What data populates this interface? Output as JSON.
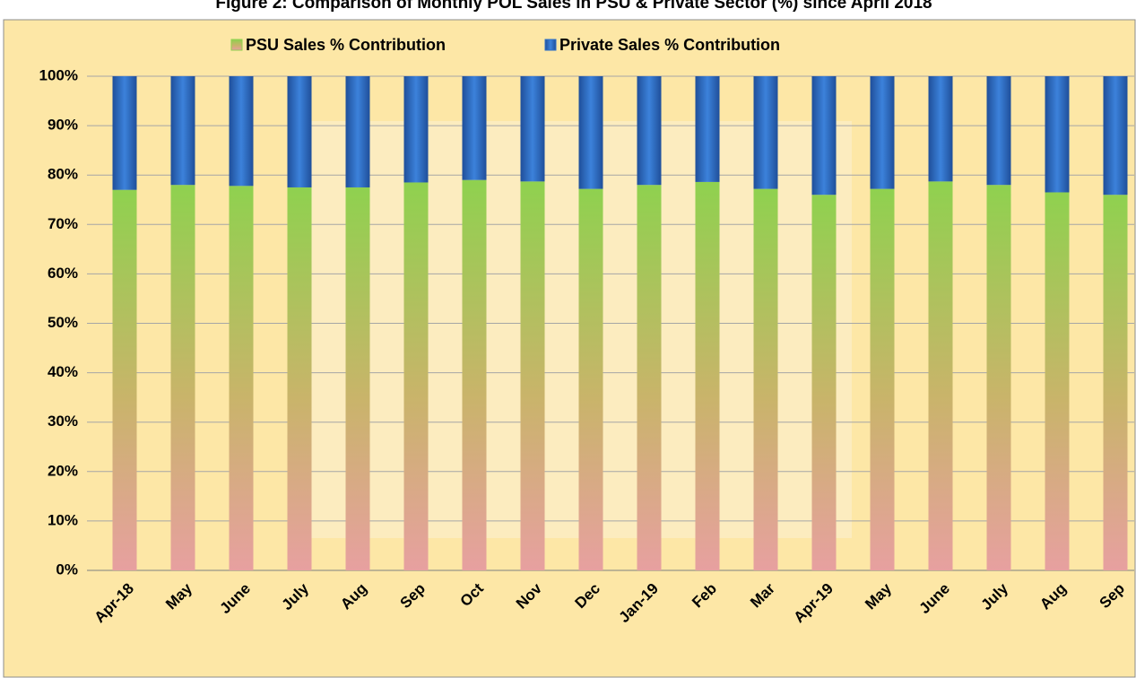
{
  "chart_data": {
    "type": "stacked_bar",
    "title": "Figure 2: Comparison of Monthly POL Sales in PSU & Private Sector (%) since April 2018",
    "categories": [
      "Apr-18",
      "May",
      "June",
      "July",
      "Aug",
      "Sep",
      "Oct",
      "Nov",
      "Dec",
      "Jan-19",
      "Feb",
      "Mar",
      "Apr-19",
      "May",
      "June",
      "July",
      "Aug",
      "Sep"
    ],
    "series": [
      {
        "name": "PSU Sales % Contribution",
        "color": "#8fd14f",
        "values": [
          77,
          78,
          77.8,
          77.5,
          77.5,
          78.5,
          79,
          78.7,
          77.2,
          78,
          78.6,
          77.2,
          76,
          77.2,
          78.7,
          78,
          76.5,
          76
        ]
      },
      {
        "name": "Private Sales % Contribution",
        "color": "#2f6fc6",
        "values": [
          23,
          22,
          22.2,
          22.5,
          22.5,
          21.5,
          21,
          21.3,
          22.8,
          22,
          21.4,
          22.8,
          24,
          22.8,
          21.3,
          22,
          23.5,
          24
        ]
      }
    ],
    "ylim": [
      0,
      100
    ],
    "yticks": [
      {
        "value": 0,
        "label": "0%"
      },
      {
        "value": 10,
        "label": "10%"
      },
      {
        "value": 20,
        "label": "20%"
      },
      {
        "value": 30,
        "label": "30%"
      },
      {
        "value": 40,
        "label": "40%"
      },
      {
        "value": 50,
        "label": "50%"
      },
      {
        "value": 60,
        "label": "60%"
      },
      {
        "value": 70,
        "label": "70%"
      },
      {
        "value": 80,
        "label": "80%"
      },
      {
        "value": 90,
        "label": "90%"
      },
      {
        "value": 100,
        "label": "100%"
      }
    ],
    "grid": true
  }
}
